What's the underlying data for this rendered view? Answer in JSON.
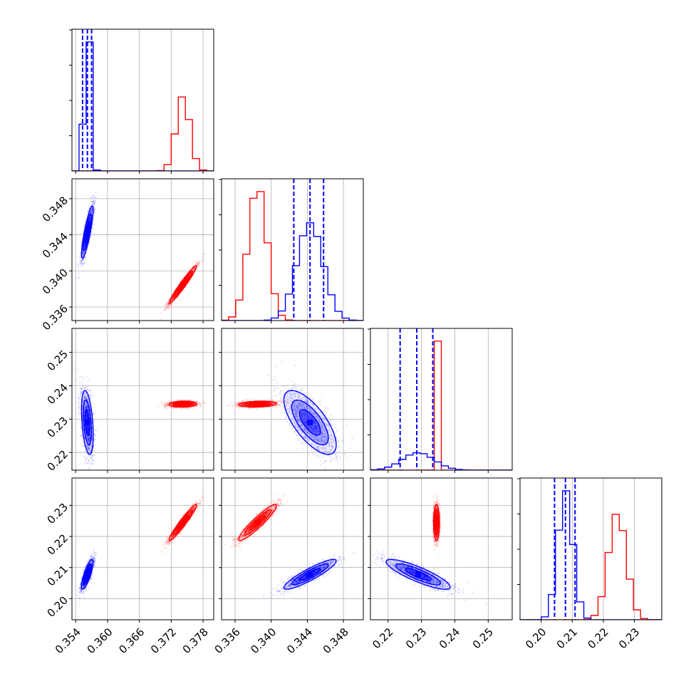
{
  "chart_data": {
    "type": "scatter",
    "subtype": "corner-plot",
    "title": "",
    "grid": true,
    "colors": {
      "series_a": "#ff0000",
      "series_b": "#0000ff"
    },
    "parameters": [
      {
        "range": [
          0.3533,
          0.38
        ],
        "ticks": [
          0.354,
          0.36,
          0.366,
          0.372,
          0.378
        ],
        "tick_labels": [
          "0.354",
          "0.360",
          "0.366",
          "0.372",
          "0.378"
        ]
      },
      {
        "range": [
          0.3345,
          0.3502
        ],
        "ticks": [
          0.336,
          0.34,
          0.344,
          0.348
        ],
        "tick_labels": [
          "0.336",
          "0.340",
          "0.344",
          "0.348"
        ]
      },
      {
        "range": [
          0.2147,
          0.2572
        ],
        "ticks": [
          0.22,
          0.23,
          0.24,
          0.25
        ],
        "tick_labels": [
          "0.22",
          "0.23",
          "0.24",
          "0.25"
        ]
      },
      {
        "range": [
          0.1932,
          0.2388
        ],
        "ticks": [
          0.2,
          0.21,
          0.22,
          0.23
        ],
        "tick_labels": [
          "0.20",
          "0.21",
          "0.22",
          "0.23"
        ]
      }
    ],
    "series": [
      {
        "color": "#ff0000",
        "means": [
          0.3742,
          0.3385,
          0.2345,
          0.2245
        ],
        "stds": [
          0.0013,
          0.00105,
          0.00045,
          0.0029
        ],
        "corr": [
          [
            1,
            0.97,
            0.1,
            0.96
          ],
          [
            0.97,
            1,
            0.2,
            0.93
          ],
          [
            0.1,
            0.2,
            1,
            0.0
          ],
          [
            0.96,
            0.93,
            0.0,
            1
          ]
        ],
        "quantiles": null,
        "hist_peak_pos": [
          0.3742,
          0.3385,
          0.2345,
          0.2245
        ]
      },
      {
        "color": "#0000ff",
        "means": [
          0.3562,
          0.3443,
          0.229,
          0.2078
        ],
        "stds": [
          0.00055,
          0.00145,
          0.0048,
          0.0024
        ],
        "corr": [
          [
            1,
            0.85,
            -0.4,
            0.8
          ],
          [
            0.85,
            1,
            -0.7,
            0.9
          ],
          [
            -0.4,
            -0.7,
            1,
            -0.85
          ],
          [
            0.8,
            0.9,
            -0.85,
            1
          ]
        ],
        "quantiles": [
          [
            0.3553,
            0.3562,
            0.357
          ],
          [
            0.3425,
            0.3443,
            0.3458
          ],
          [
            0.2236,
            0.2286,
            0.2334
          ],
          [
            0.2043,
            0.2078,
            0.2109
          ]
        ]
      }
    ]
  }
}
